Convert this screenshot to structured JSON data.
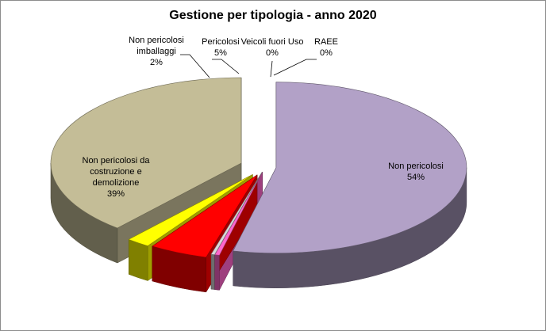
{
  "chart_data": {
    "type": "pie",
    "title": "Gestione per tipologia - anno 2020",
    "slices": [
      {
        "label_lines": [
          "Non pericolosi"
        ],
        "value_label": "54%",
        "value": 54,
        "color": "#b2a1c7"
      },
      {
        "label_lines": [
          "RAEE"
        ],
        "value_label": "0%",
        "value": 0.4,
        "color": "#ff66cc"
      },
      {
        "label_lines": [
          "Veicoli fuori Uso"
        ],
        "value_label": "0%",
        "value": 0.3,
        "color": "#d9d9d9"
      },
      {
        "label_lines": [
          "Pericolosi"
        ],
        "value_label": "5%",
        "value": 5,
        "color": "#ff0000"
      },
      {
        "label_lines": [
          "Non pericolosi",
          "imballaggi"
        ],
        "value_label": "2%",
        "value": 2,
        "color": "#ffff00"
      },
      {
        "label_lines": [
          "Non pericolosi da",
          "costruzione e",
          "demolizione"
        ],
        "value_label": "39%",
        "value": 39,
        "color": "#c4bd97"
      }
    ]
  }
}
